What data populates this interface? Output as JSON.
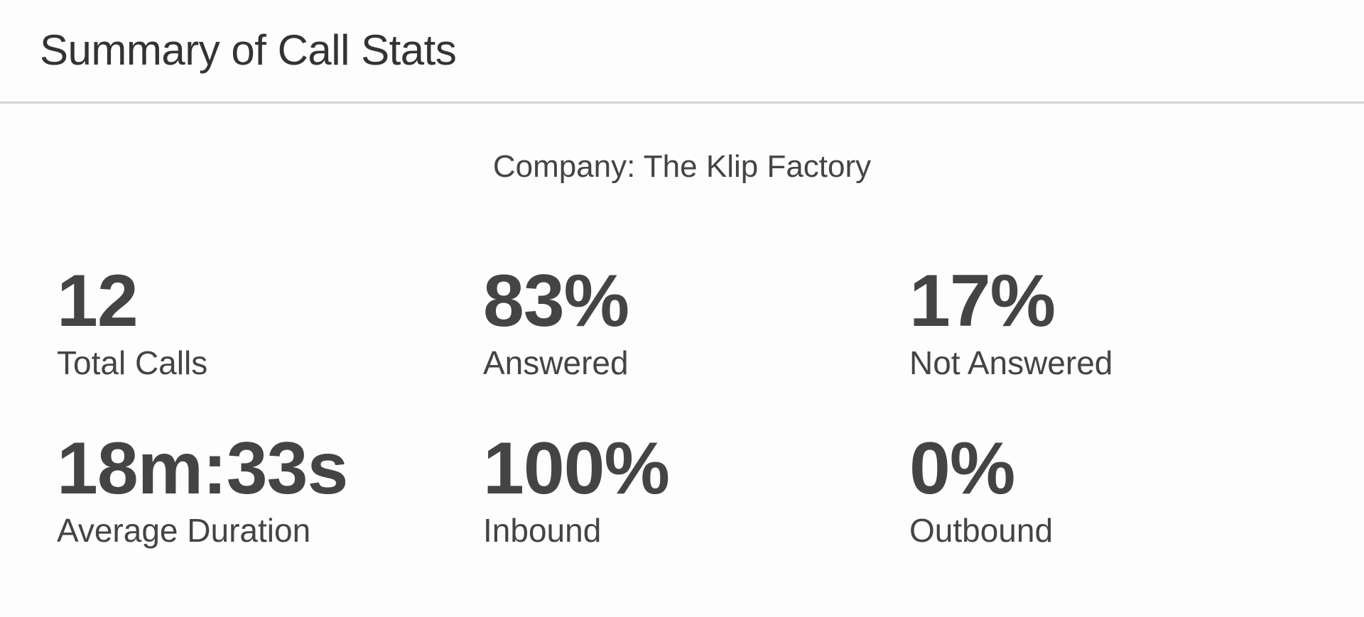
{
  "header": {
    "title": "Summary of Call Stats"
  },
  "company": "Company: The Klip Factory",
  "stats": [
    {
      "value": "12",
      "label": "Total Calls"
    },
    {
      "value": "83%",
      "label": "Answered"
    },
    {
      "value": "17%",
      "label": "Not Answered"
    },
    {
      "value": "18m:33s",
      "label": "Average Duration"
    },
    {
      "value": "100%",
      "label": "Inbound"
    },
    {
      "value": "0%",
      "label": "Outbound"
    }
  ]
}
